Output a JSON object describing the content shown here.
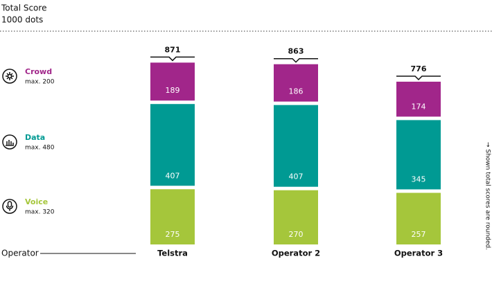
{
  "chart_data": {
    "type": "stacked-bar",
    "title": "Total Score",
    "subtitle": "1000 dots",
    "x_label": "Operator",
    "note": "→ Shown total scores are rounded.",
    "categories": [
      "Telstra",
      "Operator 2",
      "Operator 3"
    ],
    "totals": [
      871,
      863,
      776
    ],
    "ylim": [
      0,
      1000
    ],
    "series": [
      {
        "name": "Voice",
        "max_label": "max. 320",
        "color": "#a5c63b",
        "values": [
          275,
          270,
          257
        ]
      },
      {
        "name": "Data",
        "max_label": "max. 480",
        "color": "#009a93",
        "values": [
          407,
          407,
          345
        ]
      },
      {
        "name": "Crowd",
        "max_label": "max. 200",
        "color": "#a1268a",
        "values": [
          189,
          186,
          174
        ]
      }
    ]
  }
}
